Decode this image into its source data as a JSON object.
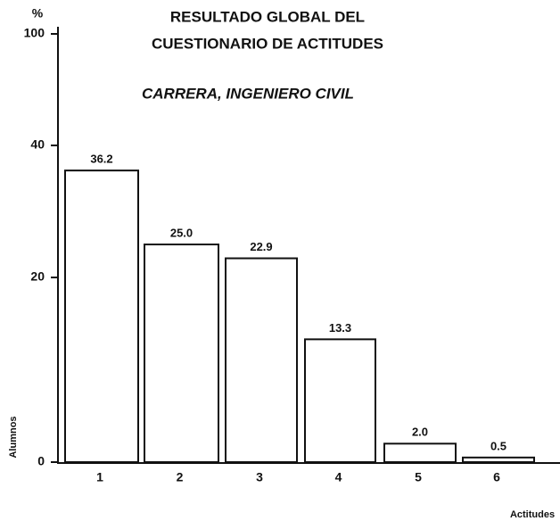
{
  "chart_data": {
    "type": "bar",
    "title": [
      "RESULTADO GLOBAL DEL",
      "CUESTIONARIO DE ACTITUDES"
    ],
    "subtitle": "CARRERA, INGENIERO CIVIL",
    "y_axis_unit": "%",
    "ylabel": "Alumnos",
    "xlabel": "Actitudes",
    "categories": [
      "1",
      "2",
      "3",
      "4",
      "5",
      "6"
    ],
    "values": [
      36.2,
      25.0,
      22.9,
      13.3,
      2.0,
      0.5
    ],
    "value_labels": [
      "36.2",
      "25.0",
      "22.9",
      "13.3",
      "2.0",
      "0.5"
    ],
    "color": "#ffffff",
    "ylim": [
      0,
      100
    ],
    "yticks": [
      0,
      20,
      40,
      100
    ],
    "grid": false
  }
}
